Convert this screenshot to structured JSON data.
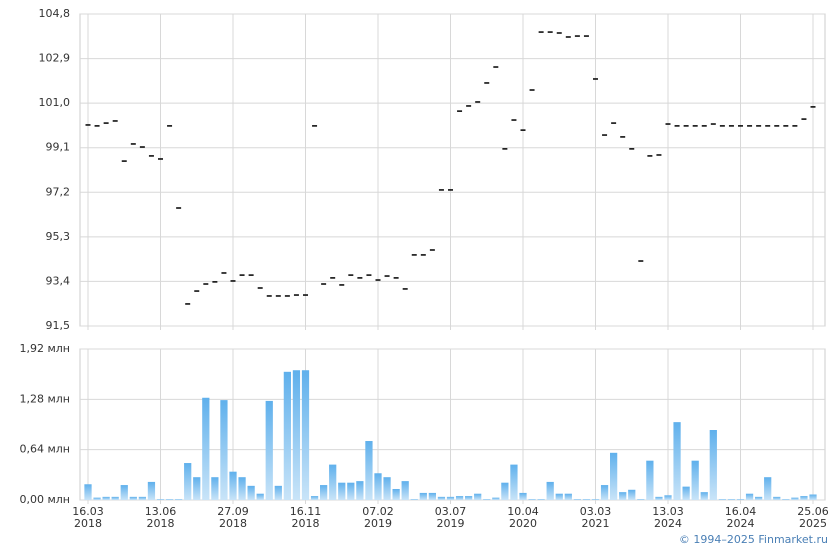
{
  "chart_data": [
    {
      "type": "price",
      "color": "#000000",
      "values": [
        100.07,
        100.03,
        100.15,
        100.24,
        98.53,
        99.26,
        99.13,
        98.75,
        98.62,
        100.03,
        96.53,
        92.44,
        92.99,
        93.29,
        93.38,
        93.76,
        93.42,
        93.67,
        93.67,
        93.12,
        92.78,
        92.78,
        92.78,
        92.82,
        92.82,
        100.03,
        93.29,
        93.55,
        93.25,
        93.67,
        93.55,
        93.67,
        93.46,
        93.63,
        93.55,
        93.08,
        94.53,
        94.53,
        94.74,
        97.3,
        97.3,
        100.66,
        100.88,
        101.05,
        101.86,
        102.54,
        99.05,
        100.28,
        99.85,
        101.56,
        104.03,
        104.03,
        103.99,
        103.82,
        103.86,
        103.86,
        102.03,
        99.64,
        100.15,
        99.56,
        99.05,
        94.27,
        98.75,
        98.79,
        100.11,
        100.03,
        100.03,
        100.03,
        100.03,
        100.11,
        100.03,
        100.03,
        100.03,
        100.03,
        100.03,
        100.03,
        100.03,
        100.03,
        100.03,
        100.32,
        100.84
      ],
      "ylim": [
        91.5,
        104.8
      ],
      "yticks": [
        {
          "value": 91.5,
          "label": "91,5"
        },
        {
          "value": 93.4,
          "label": "93,4"
        },
        {
          "value": 95.3,
          "label": "95,3"
        },
        {
          "value": 97.2,
          "label": "97,2"
        },
        {
          "value": 99.1,
          "label": "99,1"
        },
        {
          "value": 101.0,
          "label": "101,0"
        },
        {
          "value": 102.9,
          "label": "102,9"
        },
        {
          "value": 104.8,
          "label": "104,8"
        }
      ],
      "grid": true
    },
    {
      "type": "bar",
      "color": "#5fb0ec",
      "categories": [
        "16.03\n2018",
        null,
        null,
        null,
        null,
        null,
        null,
        null,
        "13.06\n2018",
        null,
        null,
        null,
        null,
        null,
        null,
        null,
        "27.09\n2018",
        null,
        null,
        null,
        null,
        null,
        null,
        null,
        "16.11\n2018",
        null,
        null,
        null,
        null,
        null,
        null,
        null,
        "07.02\n2019",
        null,
        null,
        null,
        null,
        null,
        null,
        null,
        "03.07\n2019",
        null,
        null,
        null,
        null,
        null,
        null,
        null,
        "10.04\n2020",
        null,
        null,
        null,
        null,
        null,
        null,
        null,
        "03.03\n2021",
        null,
        null,
        null,
        null,
        null,
        null,
        null,
        "13.03\n2024",
        null,
        null,
        null,
        null,
        null,
        null,
        null,
        "16.04\n2024",
        null,
        null,
        null,
        null,
        null,
        null,
        null,
        "25.06\n2025"
      ],
      "values": [
        0.2,
        0.03,
        0.04,
        0.04,
        0.19,
        0.04,
        0.04,
        0.23,
        0.01,
        0.01,
        0.01,
        0.47,
        0.29,
        1.3,
        0.29,
        1.27,
        0.36,
        0.29,
        0.18,
        0.08,
        1.26,
        0.18,
        1.63,
        1.65,
        1.65,
        0.05,
        0.19,
        0.45,
        0.22,
        0.22,
        0.24,
        0.75,
        0.34,
        0.29,
        0.14,
        0.24,
        0.01,
        0.09,
        0.09,
        0.04,
        0.04,
        0.05,
        0.05,
        0.08,
        0.01,
        0.03,
        0.22,
        0.45,
        0.09,
        0.01,
        0.01,
        0.23,
        0.08,
        0.08,
        0.01,
        0.01,
        0.01,
        0.19,
        0.6,
        0.1,
        0.13,
        0.01,
        0.5,
        0.04,
        0.06,
        0.99,
        0.17,
        0.5,
        0.1,
        0.89,
        0.01,
        0.01,
        0.01,
        0.08,
        0.04,
        0.29,
        0.04,
        0.01,
        0.03,
        0.05,
        0.07
      ],
      "ylim": [
        0,
        1.92
      ],
      "yticks": [
        {
          "value": 0,
          "label": "0,00 млн"
        },
        {
          "value": 0.64,
          "label": "0,64 млн"
        },
        {
          "value": 1.28,
          "label": "1,28 млн"
        },
        {
          "value": 1.92,
          "label": "1,92 млн"
        }
      ],
      "grid": true
    }
  ],
  "footer": "© 1994–2025 Finmarket.ru"
}
